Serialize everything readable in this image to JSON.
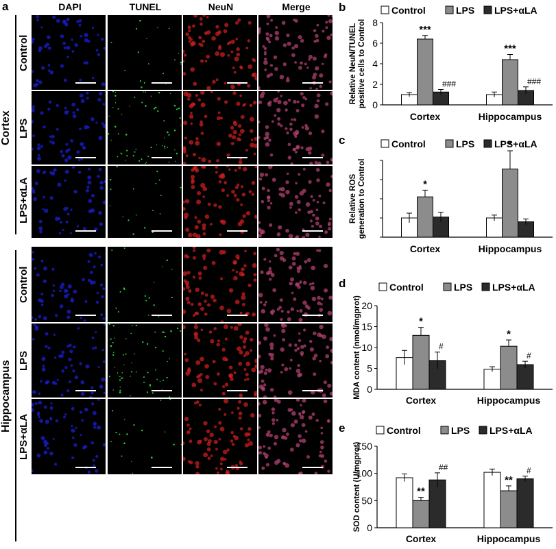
{
  "panel_a": {
    "letter": "a",
    "columns": [
      "DAPI",
      "TUNEL",
      "NeuN",
      "Merge"
    ],
    "regions": [
      {
        "name": "Cortex",
        "rows": [
          "Control",
          "LPS",
          "LPS+αLA"
        ]
      },
      {
        "name": "Hippocampus",
        "rows": [
          "Control",
          "LPS",
          "LPS+αLA"
        ]
      }
    ],
    "colors": {
      "dapi": "#1a1fd6",
      "tunel": "#2fd63a",
      "neun": "#d62020",
      "merge": "#b04070"
    }
  },
  "legend": [
    "Control",
    "LPS",
    "LPS+αLA"
  ],
  "series_colors": [
    "#ffffff",
    "#8c8c8c",
    "#2b2b2b"
  ],
  "chart_data": [
    {
      "letter": "b",
      "type": "bar",
      "categories": [
        "Cortex",
        "Hippocampus"
      ],
      "ylabel": "Relative NeuN/TUNEL positive cells to Control",
      "ylabel_lines": [
        "Relative NeuN/TUNEL",
        "positive cells to Control"
      ],
      "ylim": [
        0,
        8
      ],
      "yticks": [
        0,
        2,
        4,
        6,
        8
      ],
      "series": [
        {
          "name": "Control",
          "values": [
            1.0,
            1.0
          ],
          "errors": [
            0.2,
            0.25
          ],
          "marks": [
            "",
            ""
          ]
        },
        {
          "name": "LPS",
          "values": [
            6.4,
            4.4
          ],
          "errors": [
            0.35,
            0.5
          ],
          "marks": [
            "***",
            "***"
          ]
        },
        {
          "name": "LPS+αLA",
          "values": [
            1.25,
            1.4
          ],
          "errors": [
            0.25,
            0.35
          ],
          "marks": [
            "###",
            "###"
          ]
        }
      ]
    },
    {
      "letter": "c",
      "type": "bar",
      "categories": [
        "Cortex",
        "Hippocampus"
      ],
      "ylabel": "Relative ROS generation to Control",
      "ylabel_lines": [
        "Relative ROS",
        "generation to Control"
      ],
      "ylim": [
        0,
        4
      ],
      "yticks": [],
      "series": [
        {
          "name": "Control",
          "values": [
            1.0,
            1.0
          ],
          "errors": [
            0.25,
            0.15
          ],
          "marks": [
            "",
            ""
          ]
        },
        {
          "name": "LPS",
          "values": [
            2.1,
            3.55
          ],
          "errors": [
            0.35,
            0.95
          ],
          "marks": [
            "*",
            "*"
          ]
        },
        {
          "name": "LPS+αLA",
          "values": [
            1.05,
            0.8
          ],
          "errors": [
            0.25,
            0.15
          ],
          "marks": [
            "",
            ""
          ]
        }
      ]
    },
    {
      "letter": "d",
      "type": "bar",
      "categories": [
        "Cortex",
        "Hippocampus"
      ],
      "ylabel": "MDA content (nmol/mgprot)",
      "ylabel_lines": [
        "MDA content (nmol/mgprot)"
      ],
      "ylim": [
        0,
        20
      ],
      "yticks": [
        0,
        5,
        10,
        15,
        20
      ],
      "series": [
        {
          "name": "Control",
          "values": [
            7.6,
            4.8
          ],
          "errors": [
            1.7,
            0.6
          ],
          "marks": [
            "",
            ""
          ]
        },
        {
          "name": "LPS",
          "values": [
            12.9,
            10.3
          ],
          "errors": [
            1.9,
            1.5
          ],
          "marks": [
            "*",
            "*"
          ]
        },
        {
          "name": "LPS+αLA",
          "values": [
            6.9,
            5.9
          ],
          "errors": [
            2.0,
            0.8
          ],
          "marks": [
            "#",
            "#"
          ]
        }
      ]
    },
    {
      "letter": "e",
      "type": "bar",
      "categories": [
        "Cortex",
        "Hippocampus"
      ],
      "ylabel": "SOD content (U/mgprot)",
      "ylabel_lines": [
        "SOD content (U/mgprot)"
      ],
      "ylim": [
        0,
        150
      ],
      "yticks": [
        0,
        50,
        100,
        150
      ],
      "series": [
        {
          "name": "Control",
          "values": [
            92,
            102
          ],
          "errors": [
            7,
            6
          ],
          "marks": [
            "",
            ""
          ]
        },
        {
          "name": "LPS",
          "values": [
            50,
            68
          ],
          "errors": [
            6,
            9
          ],
          "marks": [
            "**",
            "**"
          ]
        },
        {
          "name": "LPS+αLA",
          "values": [
            88,
            90
          ],
          "errors": [
            13,
            5
          ],
          "marks": [
            "##",
            "#"
          ]
        }
      ]
    }
  ]
}
